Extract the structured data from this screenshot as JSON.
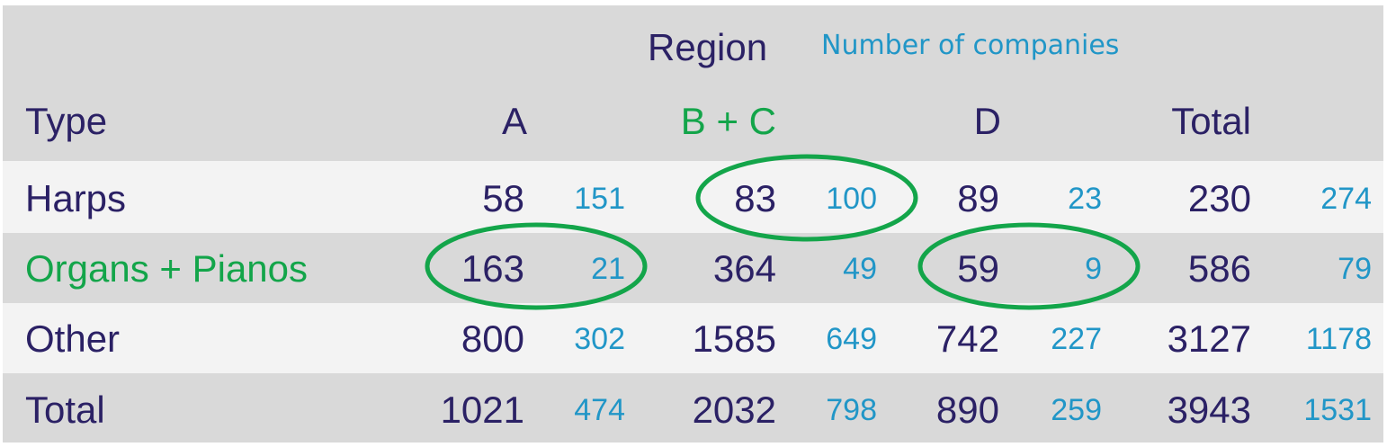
{
  "header": {
    "region_label": "Region",
    "count_note": "Number of companies",
    "type_label": "Type",
    "columns": [
      "A",
      "B + C",
      "D",
      "Total"
    ]
  },
  "rows": [
    {
      "label": "Harps",
      "cells": [
        [
          "58",
          "151"
        ],
        [
          "83",
          "100"
        ],
        [
          "89",
          "23"
        ],
        [
          "230",
          "274"
        ]
      ]
    },
    {
      "label": "Organs + Pianos",
      "cells": [
        [
          "163",
          "21"
        ],
        [
          "364",
          "49"
        ],
        [
          "59",
          "9"
        ],
        [
          "586",
          "79"
        ]
      ]
    },
    {
      "label": "Other",
      "cells": [
        [
          "800",
          "302"
        ],
        [
          "1585",
          "649"
        ],
        [
          "742",
          "227"
        ],
        [
          "3127",
          "1178"
        ]
      ]
    },
    {
      "label": "Total",
      "cells": [
        [
          "1021",
          "474"
        ],
        [
          "2032",
          "798"
        ],
        [
          "890",
          "259"
        ],
        [
          "3943",
          "1531"
        ]
      ]
    }
  ],
  "colors": {
    "dark_text": "#2b2165",
    "highlight_green": "#13a54a",
    "count_blue": "#2196c7",
    "band_dark": "#d9d9d9",
    "band_light": "#f3f3f3"
  },
  "highlighted_cells": [
    {
      "row": "Harps",
      "column": "B + C"
    },
    {
      "row": "Organs + Pianos",
      "column": "A"
    },
    {
      "row": "Organs + Pianos",
      "column": "D"
    }
  ]
}
